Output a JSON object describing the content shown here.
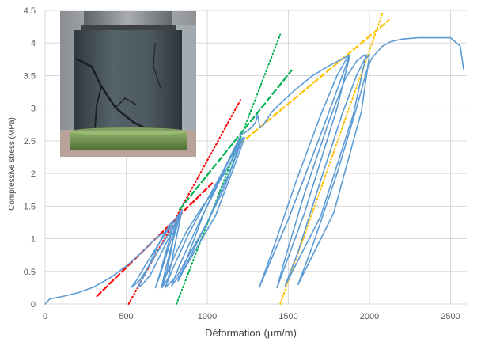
{
  "chart_data": {
    "type": "line",
    "title": "",
    "xlabel": "Déformation (µm/m)",
    "ylabel": "Compressive stress (MPa)",
    "xlim": [
      0,
      2600
    ],
    "ylim": [
      0,
      4.5
    ],
    "x_ticks": [
      "0",
      "500",
      "1000",
      "1500",
      "2000",
      "2500"
    ],
    "y_ticks": [
      "0",
      "0.5",
      "1",
      "1.5",
      "2",
      "2.5",
      "3",
      "3.5",
      "4",
      "4.5"
    ],
    "grid": true,
    "legend": "none",
    "series": [
      {
        "color": "#5b9bd5",
        "style": "solid",
        "x": [
          0,
          30,
          100,
          200,
          300,
          400,
          500,
          600,
          650,
          700,
          750,
          780,
          800,
          730,
          650,
          580,
          530,
          560,
          620,
          700,
          760,
          790,
          810,
          760,
          700,
          650,
          600,
          570,
          600,
          660,
          720,
          770,
          800,
          820,
          780,
          740,
          700,
          680,
          710,
          760,
          810,
          830,
          800,
          780,
          750,
          720,
          740,
          780,
          820,
          845,
          760,
          720,
          740,
          800,
          870,
          950,
          1030,
          1100,
          1150,
          1180,
          1200,
          1150,
          1000,
          820,
          740,
          780,
          880,
          1000,
          1100,
          1170,
          1210,
          1230,
          1180,
          1050,
          850,
          780,
          830,
          950,
          1070,
          1150,
          1200,
          1220,
          1100,
          920,
          820,
          860,
          980,
          1100,
          1180,
          1210,
          1200,
          1230,
          1250,
          1280,
          1300,
          1310,
          1325,
          1340,
          1360,
          1400,
          1470,
          1550,
          1650,
          1750,
          1850,
          1880,
          1700,
          1500,
          1320,
          1400,
          1550,
          1700,
          1800,
          1850,
          1880,
          1800,
          1600,
          1430,
          1480,
          1600,
          1750,
          1850,
          1920,
          1960,
          1980,
          1900,
          1700,
          1480,
          1560,
          1700,
          1830,
          1920,
          1970,
          2000,
          1950,
          1780,
          1560,
          1650,
          1800,
          1920,
          1980,
          2010,
          2040,
          2080,
          2130,
          2200,
          2300,
          2400,
          2500,
          2560,
          2580
        ],
        "y": [
          0,
          0.08,
          0.11,
          0.17,
          0.26,
          0.4,
          0.58,
          0.8,
          0.93,
          1.04,
          1.12,
          1.18,
          1.22,
          0.95,
          0.62,
          0.35,
          0.25,
          0.35,
          0.6,
          0.92,
          1.15,
          1.24,
          1.28,
          1.0,
          0.7,
          0.45,
          0.3,
          0.25,
          0.38,
          0.7,
          1.02,
          1.22,
          1.3,
          1.35,
          1.1,
          0.75,
          0.4,
          0.25,
          0.45,
          0.85,
          1.25,
          1.4,
          1.15,
          0.85,
          0.5,
          0.28,
          0.5,
          0.9,
          1.25,
          1.45,
          0.4,
          0.25,
          0.4,
          0.75,
          1.1,
          1.42,
          1.7,
          1.98,
          2.2,
          2.35,
          2.45,
          2.1,
          1.25,
          0.45,
          0.25,
          0.5,
          1.05,
          1.6,
          2.05,
          2.35,
          2.5,
          2.55,
          2.2,
          1.35,
          0.5,
          0.28,
          0.6,
          1.25,
          1.85,
          2.3,
          2.5,
          2.55,
          1.75,
          0.85,
          0.35,
          0.6,
          1.4,
          2.05,
          2.45,
          2.6,
          2.6,
          2.62,
          2.66,
          2.72,
          2.8,
          2.9,
          2.7,
          2.72,
          2.8,
          2.95,
          3.12,
          3.3,
          3.5,
          3.65,
          3.78,
          3.82,
          2.6,
          1.3,
          0.25,
          0.8,
          1.9,
          2.9,
          3.5,
          3.72,
          3.82,
          3.0,
          1.4,
          0.25,
          0.7,
          1.7,
          2.8,
          3.45,
          3.72,
          3.8,
          3.82,
          2.9,
          1.35,
          0.28,
          0.8,
          1.9,
          2.9,
          3.5,
          3.75,
          3.82,
          2.95,
          1.4,
          0.3,
          0.9,
          2.0,
          3.0,
          3.55,
          3.75,
          3.84,
          3.95,
          4.02,
          4.06,
          4.08,
          4.08,
          4.08,
          3.95,
          3.6
        ]
      }
    ],
    "reference_lines": [
      {
        "color": "#ff0000",
        "style": "dashed",
        "x": [
          320,
          1030
        ],
        "y": [
          0.12,
          1.85
        ]
      },
      {
        "color": "#ff0000",
        "style": "dotted",
        "x": [
          515,
          1210
        ],
        "y": [
          0,
          3.15
        ]
      },
      {
        "color": "#00b050",
        "style": "dashed",
        "x": [
          830,
          1520
        ],
        "y": [
          1.45,
          3.58
        ]
      },
      {
        "color": "#00b050",
        "style": "dotted",
        "x": [
          810,
          1450
        ],
        "y": [
          0,
          4.13
        ]
      },
      {
        "color": "#ffc000",
        "style": "dashed",
        "x": [
          1200,
          2120
        ],
        "y": [
          2.45,
          4.35
        ]
      },
      {
        "color": "#ffc000",
        "style": "dotted",
        "x": [
          1450,
          2080
        ],
        "y": [
          0,
          4.45
        ]
      }
    ]
  },
  "photo": {
    "subject": "cracked-concrete-cylinder-specimen"
  }
}
